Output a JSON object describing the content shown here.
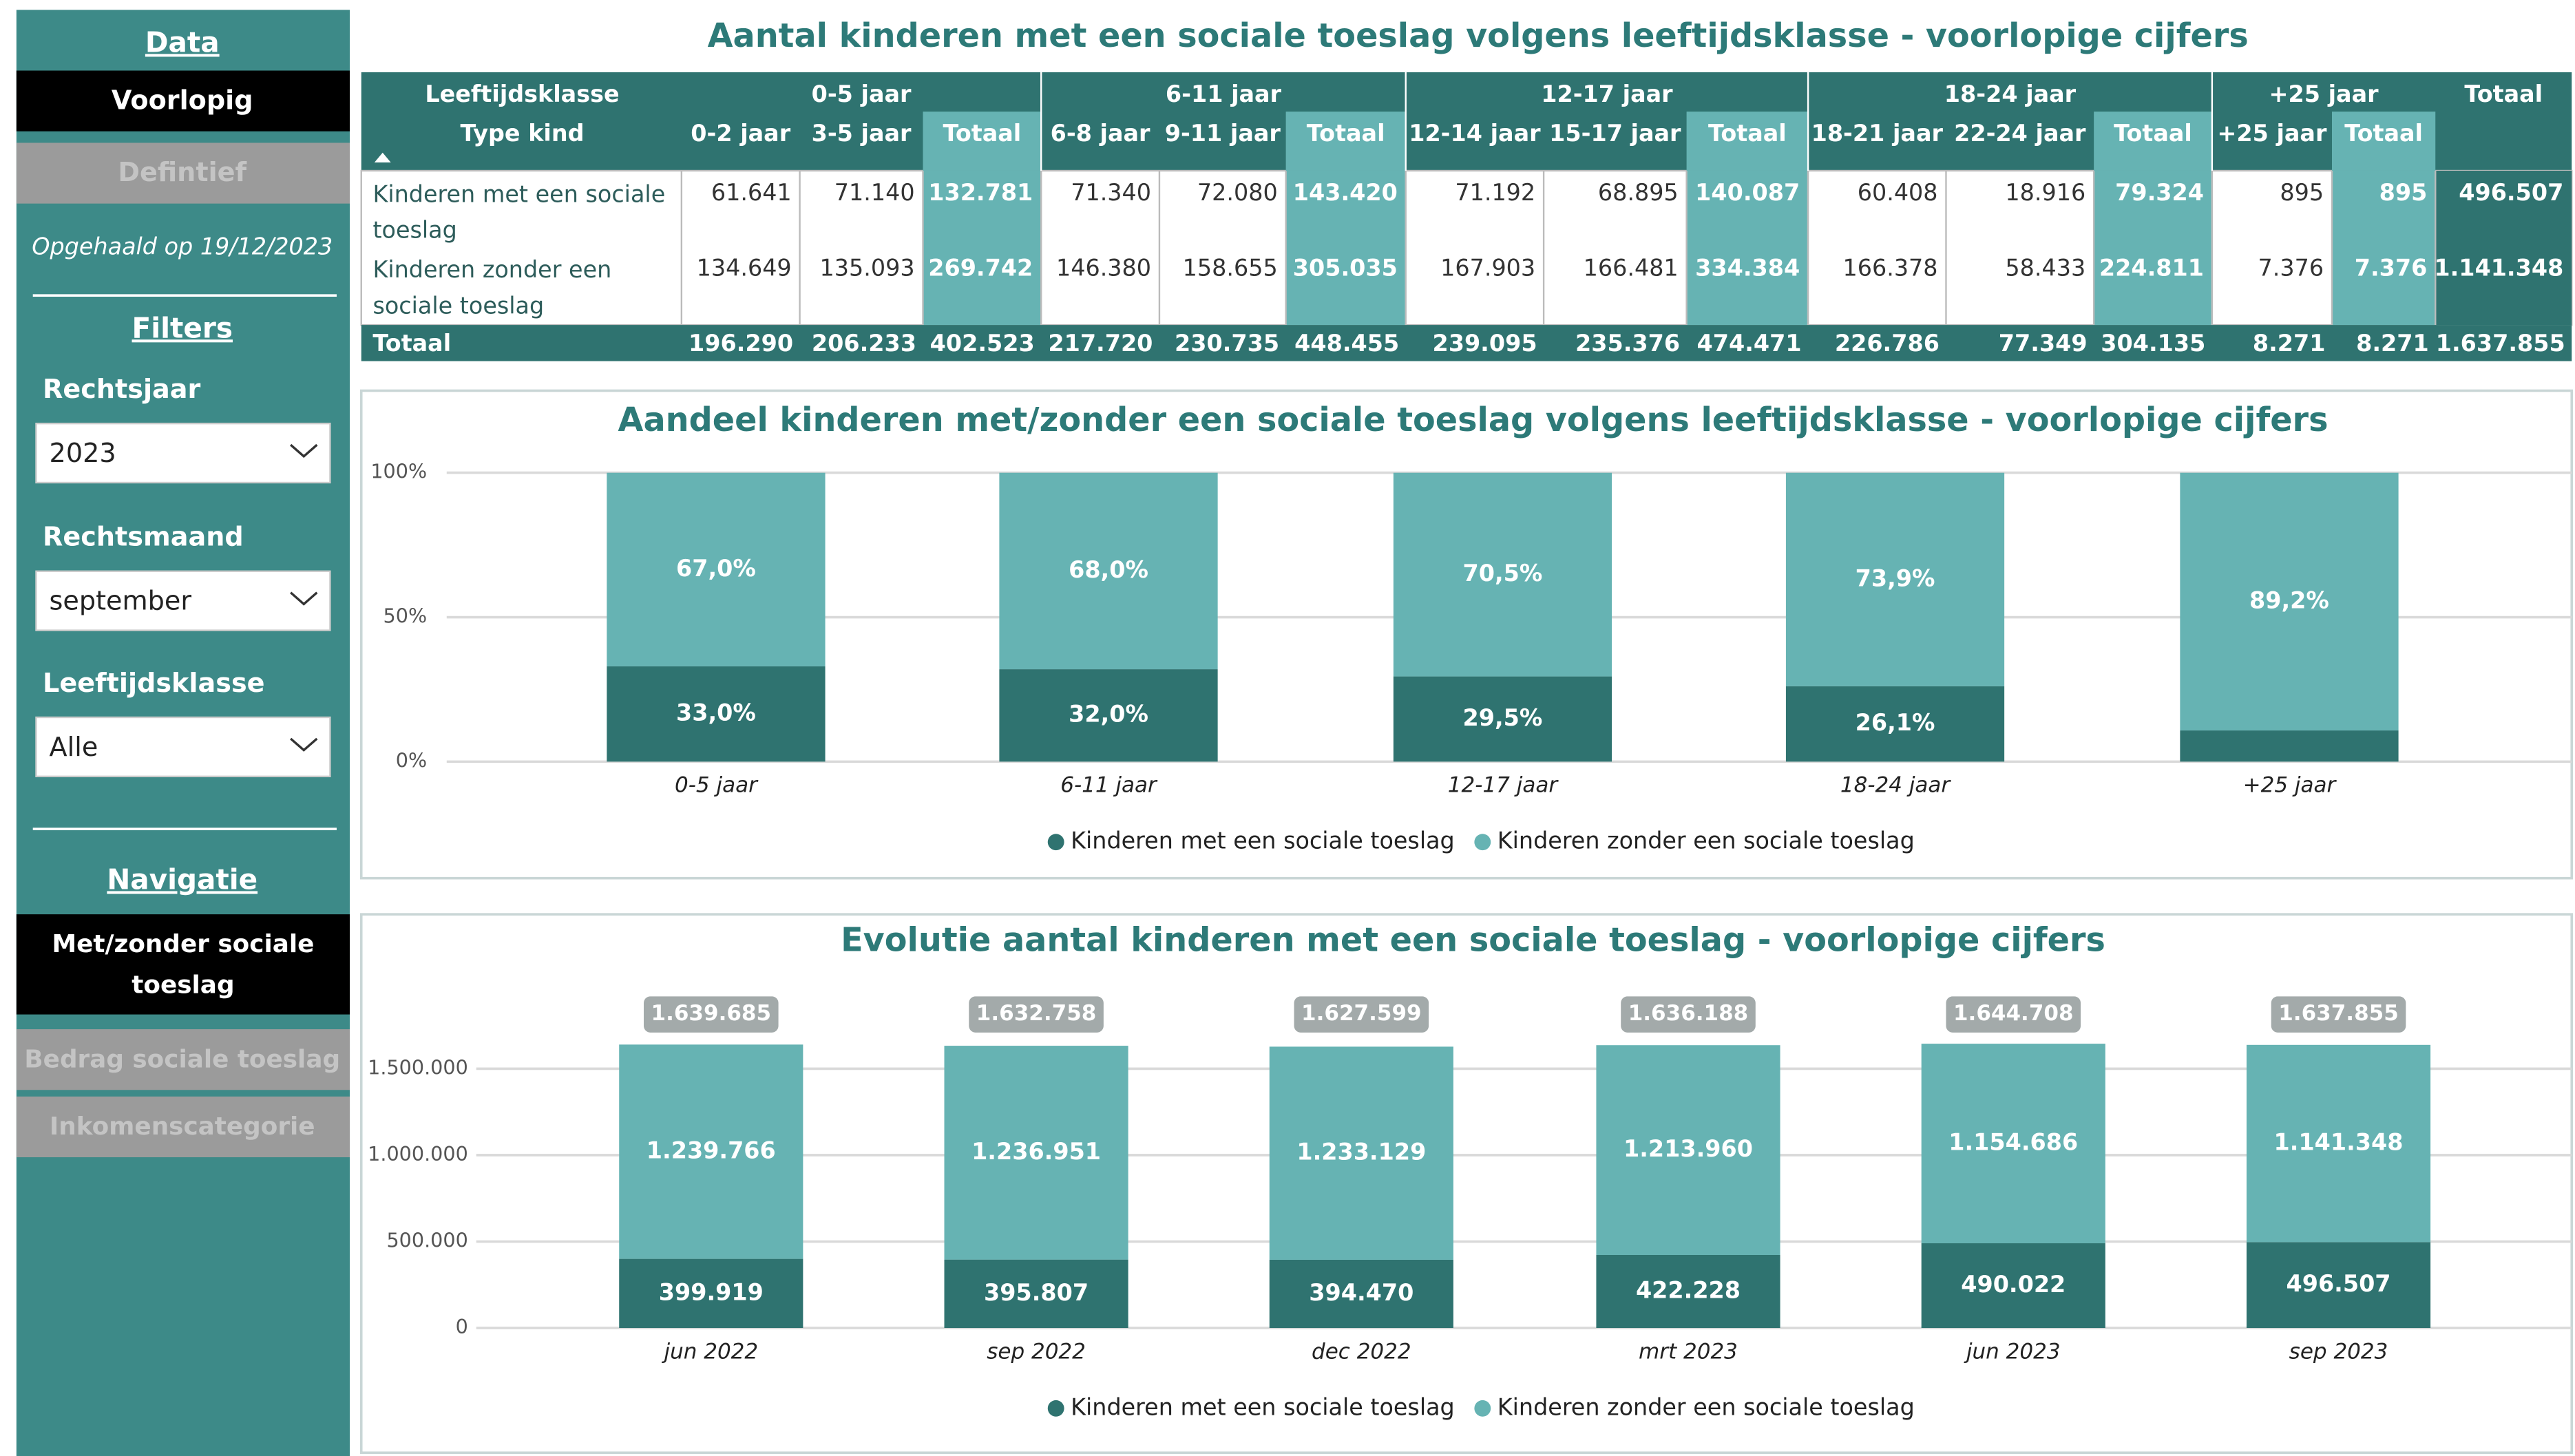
{
  "sidebar": {
    "data_heading": "Data",
    "voorlopig": "Voorlopig",
    "definitief": "Defintief",
    "retrieved": "Opgehaald op 19/12/2023",
    "filters_heading": "Filters",
    "filters": [
      {
        "label": "Rechtsjaar",
        "value": "2023"
      },
      {
        "label": "Rechtsmaand",
        "value": "september"
      },
      {
        "label": "Leeftijdsklasse",
        "value": "Alle"
      }
    ],
    "navigation_heading": "Navigatie",
    "navigation": [
      "Met/zonder sociale toeslag",
      "Bedrag sociale toeslag",
      "Inkomenscategorie"
    ]
  },
  "table": {
    "title": "Aantal kinderen met een sociale toeslag volgens leeftijdsklasse - voorlopige cijfers",
    "row_header": "Leeftijdsklasse",
    "row_subheader": "Type kind",
    "groups": [
      {
        "label": "0-5 jaar",
        "columns": [
          "0-2 jaar",
          "3-5 jaar",
          "Totaal"
        ]
      },
      {
        "label": "6-11 jaar",
        "columns": [
          "6-8 jaar",
          "9-11 jaar",
          "Totaal"
        ]
      },
      {
        "label": "12-17 jaar",
        "columns": [
          "12-14 jaar",
          "15-17 jaar",
          "Totaal"
        ]
      },
      {
        "label": "18-24 jaar",
        "columns": [
          "18-21 jaar",
          "22-24 jaar",
          "Totaal"
        ]
      },
      {
        "label": "+25 jaar",
        "columns": [
          "+25 jaar",
          "Totaal"
        ]
      }
    ],
    "grand_total": "Totaal",
    "rows": [
      {
        "label": "Kinderen met een sociale toeslag",
        "cells": [
          "61.641",
          "71.140",
          "132.781",
          "71.340",
          "72.080",
          "143.420",
          "71.192",
          "68.895",
          "140.087",
          "60.408",
          "18.916",
          "79.324",
          "895",
          "895",
          "496.507"
        ]
      },
      {
        "label": "Kinderen zonder een sociale toeslag",
        "cells": [
          "134.649",
          "135.093",
          "269.742",
          "146.380",
          "158.655",
          "305.035",
          "167.903",
          "166.481",
          "334.384",
          "166.378",
          "58.433",
          "224.811",
          "7.376",
          "7.376",
          "1.141.348"
        ]
      }
    ],
    "total_row": {
      "label": "Totaal",
      "cells": [
        "196.290",
        "206.233",
        "402.523",
        "217.720",
        "230.735",
        "448.455",
        "239.095",
        "235.376",
        "474.471",
        "226.786",
        "77.349",
        "304.135",
        "8.271",
        "8.271",
        "1.637.855"
      ]
    }
  },
  "chart_data": [
    {
      "type": "bar",
      "stacked": true,
      "title": "Aandeel kinderen met/zonder een sociale toeslag volgens leeftijdsklasse - voorlopige cijfers",
      "categories": [
        "0-5 jaar",
        "6-11 jaar",
        "12-17 jaar",
        "18-24 jaar",
        "+25 jaar"
      ],
      "series": [
        {
          "name": "Kinderen met een sociale toeslag",
          "color": "#2f7370",
          "values": [
            33.0,
            32.0,
            29.5,
            26.1,
            10.8
          ],
          "value_labels": [
            "33,0%",
            "32,0%",
            "29,5%",
            "26,1%",
            null
          ]
        },
        {
          "name": "Kinderen zonder een sociale toeslag",
          "color": "#66b3b3",
          "values": [
            67.0,
            68.0,
            70.5,
            73.9,
            89.2
          ],
          "value_labels": [
            "67,0%",
            "68,0%",
            "70,5%",
            "73,9%",
            "89,2%"
          ]
        }
      ],
      "ylim": [
        0,
        100
      ],
      "yticks": [
        {
          "value": 0,
          "label": "0%"
        },
        {
          "value": 50,
          "label": "50%"
        },
        {
          "value": 100,
          "label": "100%"
        }
      ],
      "grid": true
    },
    {
      "type": "bar",
      "stacked": true,
      "title": "Evolutie aantal kinderen met een sociale toeslag - voorlopige cijfers",
      "categories": [
        "jun 2022",
        "sep 2022",
        "dec 2022",
        "mrt 2023",
        "jun 2023",
        "sep 2023"
      ],
      "series": [
        {
          "name": "Kinderen met een sociale toeslag",
          "color": "#2f7370",
          "values": [
            399919,
            395807,
            394470,
            422228,
            490022,
            496507
          ],
          "value_labels": [
            "399.919",
            "395.807",
            "394.470",
            "422.228",
            "490.022",
            "496.507"
          ]
        },
        {
          "name": "Kinderen zonder een sociale toeslag",
          "color": "#66b3b3",
          "values": [
            1239766,
            1236951,
            1233129,
            1213960,
            1154686,
            1141348
          ],
          "value_labels": [
            "1.239.766",
            "1.236.951",
            "1.233.129",
            "1.213.960",
            "1.154.686",
            "1.141.348"
          ]
        }
      ],
      "totals": [
        1639685,
        1632758,
        1627599,
        1636188,
        1644708,
        1637855
      ],
      "total_labels": [
        "1.639.685",
        "1.632.758",
        "1.627.599",
        "1.636.188",
        "1.644.708",
        "1.637.855"
      ],
      "ylim": [
        0,
        1700000
      ],
      "yticks": [
        0,
        {
          "value": 500000,
          "label": "500.000"
        },
        {
          "value": 1000000,
          "label": "1.000.000"
        },
        {
          "value": 1500000,
          "label": "1.500.000"
        }
      ],
      "grid": true
    }
  ]
}
